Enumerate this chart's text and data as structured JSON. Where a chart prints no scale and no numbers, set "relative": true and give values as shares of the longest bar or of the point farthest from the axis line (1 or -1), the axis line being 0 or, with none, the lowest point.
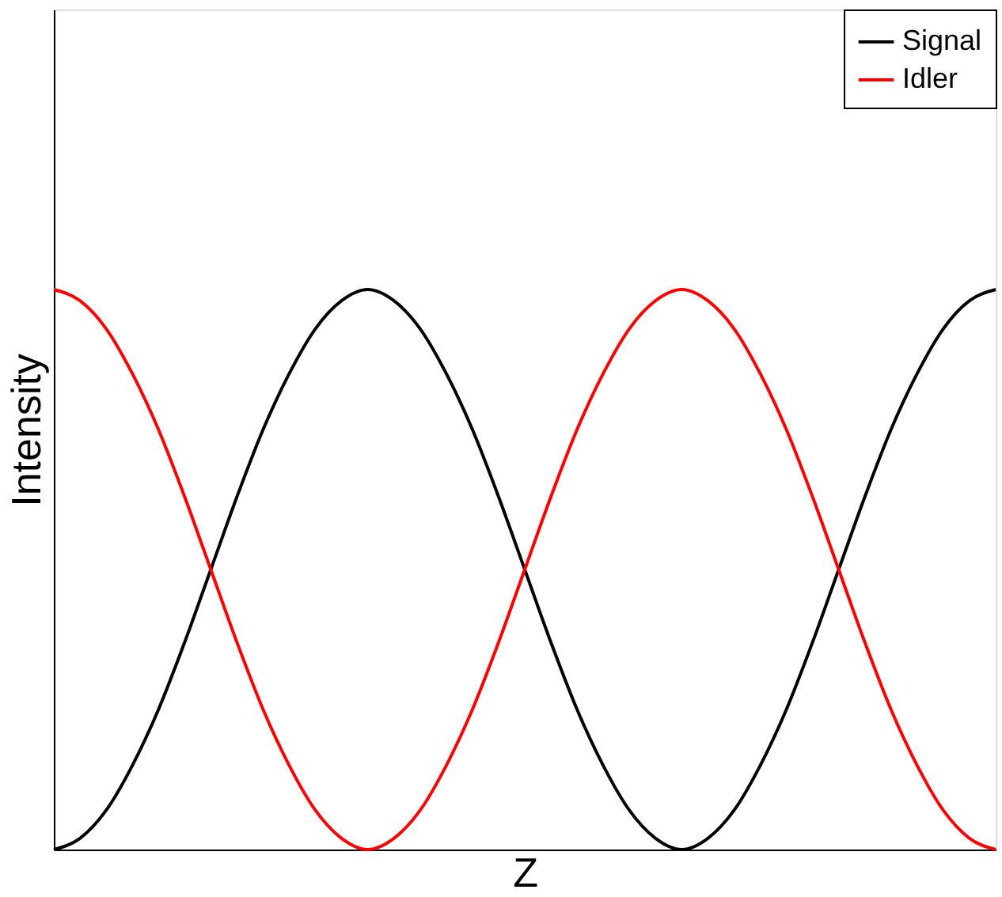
{
  "chart_data": {
    "type": "line",
    "xlabel": "Z",
    "ylabel": "Intensity",
    "relative": true,
    "legend": "top right",
    "grid": false,
    "line_style": "solid",
    "marker": "none",
    "categories": [
      null,
      null,
      null,
      null,
      null,
      null,
      null,
      null,
      null,
      null,
      null,
      null,
      null,
      null,
      null,
      null,
      null,
      null,
      null,
      null,
      null,
      null,
      null,
      null,
      null,
      null,
      null,
      null,
      null,
      null,
      null,
      null,
      null,
      null,
      null,
      null,
      null
    ],
    "series": [
      {
        "name": "Signal",
        "color": "#000000",
        "values": [
          0,
          0.02,
          0.07,
          0.15,
          0.25,
          0.37,
          0.5,
          0.63,
          0.75,
          0.85,
          0.93,
          0.98,
          1,
          0.98,
          0.93,
          0.85,
          0.75,
          0.63,
          0.5,
          0.37,
          0.25,
          0.15,
          0.07,
          0.02,
          0,
          0.02,
          0.07,
          0.15,
          0.25,
          0.37,
          0.5,
          0.63,
          0.75,
          0.85,
          0.93,
          0.98,
          1
        ]
      },
      {
        "name": "Idler",
        "color": "#ff0000",
        "values": [
          1,
          0.98,
          0.93,
          0.85,
          0.75,
          0.63,
          0.5,
          0.37,
          0.25,
          0.15,
          0.07,
          0.02,
          0,
          0.02,
          0.07,
          0.15,
          0.25,
          0.37,
          0.5,
          0.63,
          0.75,
          0.85,
          0.93,
          0.98,
          1,
          0.98,
          0.93,
          0.85,
          0.75,
          0.63,
          0.5,
          0.37,
          0.25,
          0.15,
          0.07,
          0.02,
          0
        ]
      }
    ]
  }
}
